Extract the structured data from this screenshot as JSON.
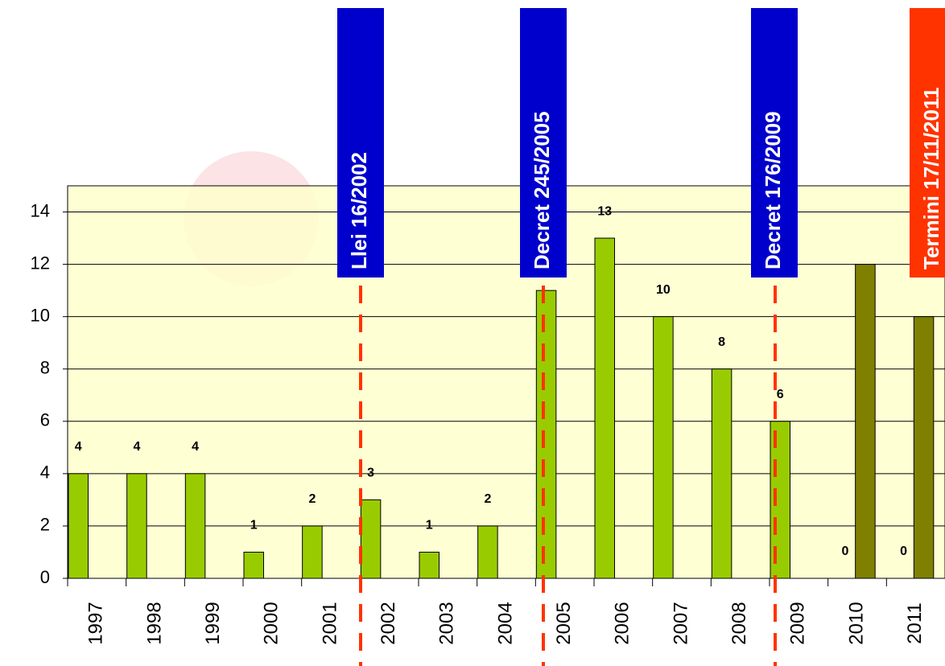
{
  "chart_data": {
    "type": "bar",
    "categories": [
      "1997",
      "1998",
      "1999",
      "2000",
      "2001",
      "2002",
      "2003",
      "2004",
      "2005",
      "2006",
      "2007",
      "2008",
      "2009",
      "2010",
      "2011"
    ],
    "series": [
      {
        "color": "#99cc00",
        "values": [
          4,
          4,
          4,
          1,
          2,
          3,
          1,
          2,
          11,
          13,
          10,
          8,
          6,
          0,
          0
        ]
      },
      {
        "color": "#808000",
        "values": [
          null,
          null,
          null,
          null,
          null,
          null,
          null,
          null,
          null,
          null,
          null,
          null,
          null,
          12,
          10
        ]
      }
    ],
    "ylim": [
      0,
      15
    ],
    "yticks": [
      0,
      2,
      4,
      6,
      8,
      10,
      12,
      14
    ],
    "grid": true,
    "annotations": [
      {
        "text": "Llei 16/2002",
        "color": "#0000cc"
      },
      {
        "text": "Decret 245/2005",
        "color": "#0000cc"
      },
      {
        "text": "Decret 176/2009",
        "color": "#0000cc"
      },
      {
        "text": "Termini 17/11/2011",
        "color": "#ff3300"
      }
    ]
  }
}
